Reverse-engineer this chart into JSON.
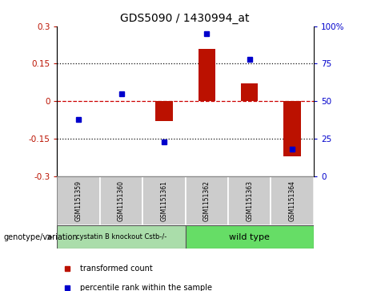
{
  "title": "GDS5090 / 1430994_at",
  "samples": [
    "GSM1151359",
    "GSM1151360",
    "GSM1151361",
    "GSM1151362",
    "GSM1151363",
    "GSM1151364"
  ],
  "transformed_count": [
    0.0,
    0.0,
    -0.08,
    0.21,
    0.07,
    -0.22
  ],
  "percentile_rank": [
    38,
    55,
    23,
    95,
    78,
    18
  ],
  "ylim_left": [
    -0.3,
    0.3
  ],
  "ylim_right": [
    0,
    100
  ],
  "yticks_left": [
    -0.3,
    -0.15,
    0.0,
    0.15,
    0.3
  ],
  "yticks_right": [
    0,
    25,
    50,
    75,
    100
  ],
  "group1_label": "cystatin B knockout Cstb-/-",
  "group2_label": "wild type",
  "group1_color": "#aaddaa",
  "group2_color": "#66dd66",
  "bar_color": "#bb1100",
  "dot_color": "#0000cc",
  "hline_color": "#cc0000",
  "dotted_color": "#111111",
  "genotype_label": "genotype/variation",
  "legend_bar": "transformed count",
  "legend_dot": "percentile rank within the sample",
  "bar_width": 0.4,
  "sample_box_color": "#cccccc",
  "plot_bg": "#ffffff"
}
